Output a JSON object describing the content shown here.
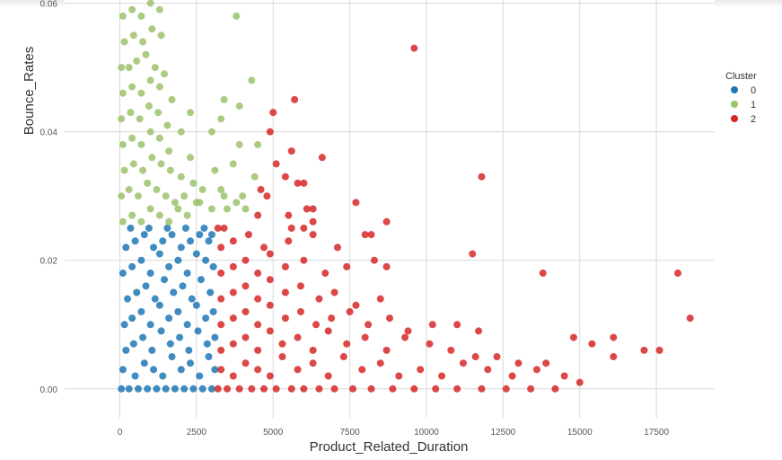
{
  "chart_data": {
    "type": "scatter",
    "title": "",
    "xlabel": "Product_Related_Duration",
    "ylabel": "Bounce_Rates",
    "xlim": [
      -1800,
      19400
    ],
    "ylim": [
      -0.0045,
      0.0605
    ],
    "xticks": [
      0,
      2500,
      5000,
      7500,
      10000,
      12500,
      15000,
      17500
    ],
    "xtick_labels": [
      "0",
      "2500",
      "5000",
      "7500",
      "10000",
      "12500",
      "15000",
      "17500"
    ],
    "yticks": [
      0.0,
      0.02,
      0.04,
      0.06
    ],
    "ytick_labels": [
      "0.00",
      "0.02",
      "0.04",
      "0.06"
    ],
    "grid": true,
    "legend": {
      "title": "Cluster",
      "placement": "right",
      "entries": [
        "0",
        "1",
        "2"
      ]
    },
    "series": [
      {
        "name": "0",
        "color": "#1f77b4",
        "points": [
          [
            50,
            0
          ],
          [
            300,
            0
          ],
          [
            600,
            0
          ],
          [
            900,
            0
          ],
          [
            1200,
            0
          ],
          [
            1500,
            0
          ],
          [
            1800,
            0
          ],
          [
            2100,
            0
          ],
          [
            2400,
            0
          ],
          [
            2700,
            0
          ],
          [
            3000,
            0
          ],
          [
            100,
            0.003
          ],
          [
            500,
            0.002
          ],
          [
            800,
            0.004
          ],
          [
            1100,
            0.003
          ],
          [
            1400,
            0.002
          ],
          [
            1700,
            0.005
          ],
          [
            2000,
            0.003
          ],
          [
            2300,
            0.004
          ],
          [
            2600,
            0.002
          ],
          [
            2900,
            0.005
          ],
          [
            3100,
            0.003
          ],
          [
            200,
            0.006
          ],
          [
            450,
            0.007
          ],
          [
            750,
            0.008
          ],
          [
            1050,
            0.006
          ],
          [
            1350,
            0.009
          ],
          [
            1650,
            0.007
          ],
          [
            1950,
            0.008
          ],
          [
            2250,
            0.006
          ],
          [
            2550,
            0.009
          ],
          [
            2850,
            0.007
          ],
          [
            3100,
            0.008
          ],
          [
            150,
            0.01
          ],
          [
            400,
            0.011
          ],
          [
            700,
            0.012
          ],
          [
            1000,
            0.01
          ],
          [
            1300,
            0.013
          ],
          [
            1600,
            0.011
          ],
          [
            1900,
            0.012
          ],
          [
            2200,
            0.01
          ],
          [
            2500,
            0.013
          ],
          [
            2800,
            0.011
          ],
          [
            3050,
            0.012
          ],
          [
            250,
            0.014
          ],
          [
            550,
            0.015
          ],
          [
            850,
            0.016
          ],
          [
            1150,
            0.014
          ],
          [
            1450,
            0.017
          ],
          [
            1750,
            0.015
          ],
          [
            2050,
            0.016
          ],
          [
            2350,
            0.014
          ],
          [
            2650,
            0.017
          ],
          [
            2950,
            0.015
          ],
          [
            100,
            0.018
          ],
          [
            400,
            0.019
          ],
          [
            700,
            0.02
          ],
          [
            1000,
            0.018
          ],
          [
            1300,
            0.021
          ],
          [
            1600,
            0.019
          ],
          [
            1900,
            0.02
          ],
          [
            2200,
            0.018
          ],
          [
            2500,
            0.021
          ],
          [
            2800,
            0.02
          ],
          [
            3050,
            0.019
          ],
          [
            200,
            0.022
          ],
          [
            500,
            0.023
          ],
          [
            800,
            0.024
          ],
          [
            1100,
            0.022
          ],
          [
            1400,
            0.023
          ],
          [
            1700,
            0.024
          ],
          [
            2000,
            0.022
          ],
          [
            2300,
            0.023
          ],
          [
            2600,
            0.024
          ],
          [
            2900,
            0.023
          ],
          [
            350,
            0.025
          ],
          [
            950,
            0.025
          ],
          [
            1550,
            0.025
          ],
          [
            2150,
            0.025
          ],
          [
            2750,
            0.025
          ],
          [
            3000,
            0.024
          ]
        ]
      },
      {
        "name": "1",
        "color": "#9ec26c",
        "points": [
          [
            100,
            0.026
          ],
          [
            400,
            0.027
          ],
          [
            700,
            0.026
          ],
          [
            1000,
            0.028
          ],
          [
            1300,
            0.027
          ],
          [
            1600,
            0.026
          ],
          [
            1900,
            0.028
          ],
          [
            2200,
            0.027
          ],
          [
            50,
            0.03
          ],
          [
            300,
            0.031
          ],
          [
            600,
            0.03
          ],
          [
            900,
            0.032
          ],
          [
            1200,
            0.031
          ],
          [
            1500,
            0.03
          ],
          [
            1800,
            0.029
          ],
          [
            2100,
            0.03
          ],
          [
            2500,
            0.029
          ],
          [
            150,
            0.034
          ],
          [
            450,
            0.035
          ],
          [
            750,
            0.034
          ],
          [
            1050,
            0.036
          ],
          [
            1350,
            0.035
          ],
          [
            1650,
            0.034
          ],
          [
            2000,
            0.033
          ],
          [
            2400,
            0.032
          ],
          [
            100,
            0.038
          ],
          [
            400,
            0.039
          ],
          [
            700,
            0.038
          ],
          [
            1000,
            0.04
          ],
          [
            1300,
            0.039
          ],
          [
            1600,
            0.037
          ],
          [
            2300,
            0.036
          ],
          [
            2700,
            0.031
          ],
          [
            50,
            0.042
          ],
          [
            350,
            0.043
          ],
          [
            650,
            0.042
          ],
          [
            950,
            0.044
          ],
          [
            1250,
            0.043
          ],
          [
            1550,
            0.041
          ],
          [
            2000,
            0.04
          ],
          [
            100,
            0.046
          ],
          [
            400,
            0.047
          ],
          [
            700,
            0.046
          ],
          [
            1000,
            0.048
          ],
          [
            1300,
            0.047
          ],
          [
            1700,
            0.045
          ],
          [
            50,
            0.05
          ],
          [
            300,
            0.05
          ],
          [
            550,
            0.051
          ],
          [
            850,
            0.052
          ],
          [
            1150,
            0.05
          ],
          [
            1450,
            0.049
          ],
          [
            150,
            0.054
          ],
          [
            450,
            0.055
          ],
          [
            750,
            0.054
          ],
          [
            1050,
            0.056
          ],
          [
            1350,
            0.055
          ],
          [
            100,
            0.058
          ],
          [
            400,
            0.059
          ],
          [
            700,
            0.058
          ],
          [
            1000,
            0.06
          ],
          [
            1300,
            0.059
          ],
          [
            2300,
            0.043
          ],
          [
            2600,
            0.029
          ],
          [
            3000,
            0.028
          ],
          [
            3300,
            0.031
          ],
          [
            3400,
            0.03
          ],
          [
            3100,
            0.034
          ],
          [
            3500,
            0.028
          ],
          [
            3800,
            0.029
          ],
          [
            3000,
            0.04
          ],
          [
            3300,
            0.042
          ],
          [
            3400,
            0.045
          ],
          [
            3800,
            0.058
          ],
          [
            4300,
            0.048
          ],
          [
            3900,
            0.044
          ],
          [
            3700,
            0.035
          ],
          [
            3900,
            0.038
          ],
          [
            4000,
            0.03
          ],
          [
            4100,
            0.028
          ],
          [
            4400,
            0.033
          ],
          [
            4500,
            0.038
          ]
        ]
      },
      {
        "name": "2",
        "color": "#d62728",
        "points": [
          [
            3200,
            0
          ],
          [
            3500,
            0
          ],
          [
            3900,
            0
          ],
          [
            4300,
            0
          ],
          [
            4700,
            0
          ],
          [
            5100,
            0
          ],
          [
            5600,
            0
          ],
          [
            6000,
            0
          ],
          [
            6500,
            0
          ],
          [
            7000,
            0
          ],
          [
            7600,
            0
          ],
          [
            8200,
            0
          ],
          [
            8900,
            0
          ],
          [
            9600,
            0
          ],
          [
            10300,
            0
          ],
          [
            11000,
            0
          ],
          [
            11800,
            0
          ],
          [
            12600,
            0
          ],
          [
            13400,
            0
          ],
          [
            14200,
            0
          ],
          [
            3300,
            0.003
          ],
          [
            3700,
            0.002
          ],
          [
            4100,
            0.004
          ],
          [
            4500,
            0.003
          ],
          [
            4900,
            0.002
          ],
          [
            5300,
            0.005
          ],
          [
            5800,
            0.003
          ],
          [
            6300,
            0.004
          ],
          [
            6800,
            0.002
          ],
          [
            7300,
            0.005
          ],
          [
            7900,
            0.003
          ],
          [
            8500,
            0.004
          ],
          [
            9100,
            0.002
          ],
          [
            9800,
            0.003
          ],
          [
            10500,
            0.002
          ],
          [
            11200,
            0.004
          ],
          [
            12000,
            0.003
          ],
          [
            12800,
            0.002
          ],
          [
            13600,
            0.003
          ],
          [
            14500,
            0.002
          ],
          [
            15000,
            0.001
          ],
          [
            3300,
            0.006
          ],
          [
            3700,
            0.007
          ],
          [
            4100,
            0.008
          ],
          [
            4500,
            0.006
          ],
          [
            4900,
            0.009
          ],
          [
            5300,
            0.007
          ],
          [
            5800,
            0.008
          ],
          [
            6300,
            0.006
          ],
          [
            6800,
            0.009
          ],
          [
            7400,
            0.007
          ],
          [
            8000,
            0.008
          ],
          [
            8700,
            0.006
          ],
          [
            9300,
            0.008
          ],
          [
            10100,
            0.007
          ],
          [
            10800,
            0.006
          ],
          [
            11600,
            0.005
          ],
          [
            12300,
            0.005
          ],
          [
            13000,
            0.004
          ],
          [
            13900,
            0.004
          ],
          [
            14800,
            0.008
          ],
          [
            15400,
            0.007
          ],
          [
            16100,
            0.008
          ],
          [
            16100,
            0.005
          ],
          [
            17100,
            0.006
          ],
          [
            17600,
            0.006
          ],
          [
            18600,
            0.011
          ],
          [
            3300,
            0.01
          ],
          [
            3700,
            0.011
          ],
          [
            4100,
            0.012
          ],
          [
            4500,
            0.01
          ],
          [
            4900,
            0.013
          ],
          [
            5400,
            0.011
          ],
          [
            5900,
            0.012
          ],
          [
            6400,
            0.01
          ],
          [
            6900,
            0.011
          ],
          [
            7500,
            0.012
          ],
          [
            8100,
            0.01
          ],
          [
            8800,
            0.011
          ],
          [
            9400,
            0.009
          ],
          [
            10200,
            0.01
          ],
          [
            11000,
            0.01
          ],
          [
            11700,
            0.009
          ],
          [
            3300,
            0.014
          ],
          [
            3700,
            0.015
          ],
          [
            4100,
            0.016
          ],
          [
            4500,
            0.014
          ],
          [
            4900,
            0.017
          ],
          [
            5400,
            0.015
          ],
          [
            5900,
            0.016
          ],
          [
            6500,
            0.014
          ],
          [
            7000,
            0.015
          ],
          [
            7700,
            0.013
          ],
          [
            8500,
            0.014
          ],
          [
            3300,
            0.018
          ],
          [
            3700,
            0.019
          ],
          [
            4100,
            0.02
          ],
          [
            4500,
            0.018
          ],
          [
            4900,
            0.021
          ],
          [
            5400,
            0.019
          ],
          [
            6000,
            0.02
          ],
          [
            6700,
            0.018
          ],
          [
            7400,
            0.019
          ],
          [
            8300,
            0.02
          ],
          [
            8700,
            0.019
          ],
          [
            3300,
            0.022
          ],
          [
            3700,
            0.023
          ],
          [
            4200,
            0.024
          ],
          [
            4700,
            0.022
          ],
          [
            5500,
            0.023
          ],
          [
            6300,
            0.024
          ],
          [
            7100,
            0.022
          ],
          [
            8200,
            0.024
          ],
          [
            3200,
            0.025
          ],
          [
            3400,
            0.025
          ],
          [
            4500,
            0.027
          ],
          [
            4600,
            0.031
          ],
          [
            4800,
            0.03
          ],
          [
            4900,
            0.04
          ],
          [
            5100,
            0.035
          ],
          [
            5000,
            0.043
          ],
          [
            5400,
            0.033
          ],
          [
            5600,
            0.037
          ],
          [
            5700,
            0.045
          ],
          [
            5800,
            0.032
          ],
          [
            6000,
            0.032
          ],
          [
            6100,
            0.028
          ],
          [
            6300,
            0.028
          ],
          [
            6600,
            0.036
          ],
          [
            5600,
            0.025
          ],
          [
            6000,
            0.025
          ],
          [
            5500,
            0.027
          ],
          [
            6300,
            0.026
          ],
          [
            7700,
            0.029
          ],
          [
            8000,
            0.024
          ],
          [
            8700,
            0.026
          ],
          [
            9600,
            0.053
          ],
          [
            11500,
            0.021
          ],
          [
            11800,
            0.033
          ],
          [
            13800,
            0.018
          ],
          [
            18200,
            0.018
          ]
        ]
      }
    ]
  }
}
